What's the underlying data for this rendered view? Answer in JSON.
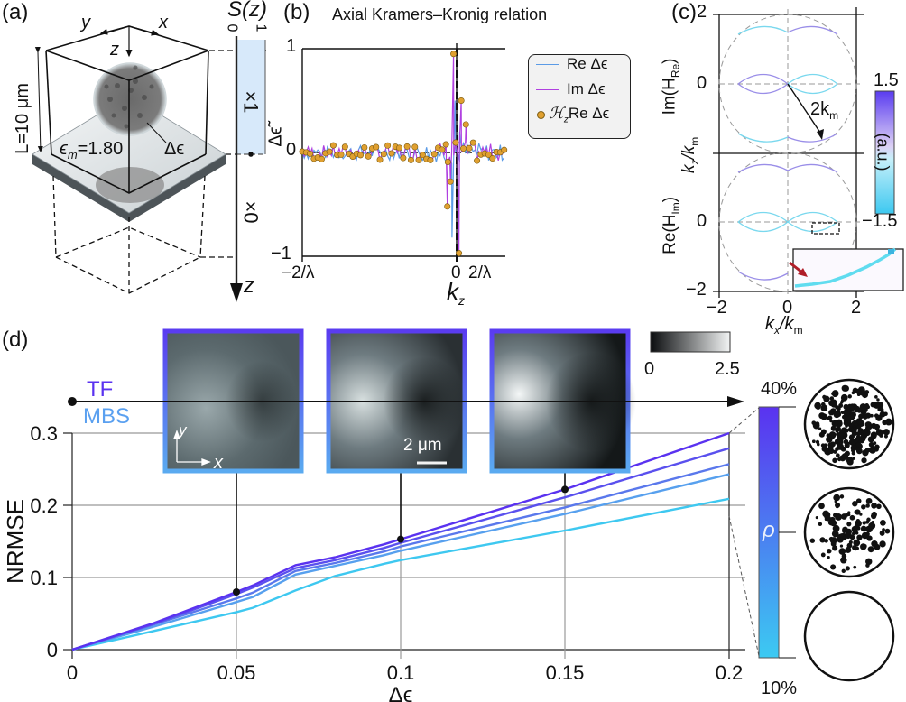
{
  "panels": {
    "a": {
      "label": "(a)",
      "axis_y": "y",
      "axis_x": "x",
      "axis_z": "z",
      "length_label": "L=10 μm",
      "medium_label_base": "ϵ",
      "medium_label_sub": "m",
      "medium_label_value": "=1.80",
      "delta_label": "Δϵ",
      "s_label": "S(z)",
      "s_tick0": "0",
      "s_tick1": "1",
      "factor_inside": "×1",
      "factor_outside": "×0",
      "z_arrow_label": "z"
    },
    "b": {
      "label": "(b)",
      "title": "Axial Kramers–Kronig relation",
      "ylabel": "Δϵ̃",
      "xlabel": "k",
      "xlabel_sub": "z",
      "yticks": [
        "1",
        "0",
        "−1"
      ],
      "xticks": [
        "−2/λ",
        "0",
        "2/λ"
      ],
      "legend": [
        {
          "prefix": "Re ",
          "sym": "Δϵ",
          "color": "#5b9be6",
          "kind": "line"
        },
        {
          "prefix": "Im ",
          "sym": "Δϵ",
          "color": "#b040e0",
          "kind": "line"
        },
        {
          "prefix": "ℋ",
          "sub": "z",
          "mid": "Re ",
          "sym": "Δϵ",
          "color": "#e0a030",
          "kind": "dot"
        }
      ]
    },
    "c": {
      "label": "(c)",
      "top_ylabel": "Im(H",
      "top_ylabel_sub": "Re",
      "bottom_ylabel": "Re(H",
      "bottom_ylabel_sub": "Im",
      "shared_ylabel": "k",
      "shared_ylabel_sub_a": "z",
      "shared_ylabel_b": "/k",
      "shared_ylabel_sub_b": "m",
      "xlabel": "k",
      "xlabel_sub_a": "x",
      "xlabel_b": "/k",
      "xlabel_sub_b": "m",
      "yticks_top": [
        "2",
        "0"
      ],
      "yticks_bottom": [
        "0",
        "−2"
      ],
      "xticks": [
        "−2",
        "0",
        "2"
      ],
      "radius_label": "2k",
      "radius_label_sub": "m",
      "colorbar_max": "1.5",
      "colorbar_min": "−1.5",
      "colorbar_label": "(a.u.)",
      "colorbar_top_color": "#5a3cf0",
      "colorbar_bottom_color": "#3cc8f0"
    },
    "d": {
      "label": "(d)",
      "legend_tf": "TF",
      "legend_mbs": "MBS",
      "legend_tf_color": "#5a32f0",
      "legend_mbs_color": "#5aa0f0",
      "scale_bar": "2 μm",
      "inset_axis_x": "x",
      "inset_axis_y": "y",
      "gray_cbar_min": "0",
      "gray_cbar_max": "2.5",
      "rho_label": "ρ",
      "rho_max": "40%",
      "rho_min": "10%"
    }
  },
  "chart_data": [
    {
      "type": "line",
      "panel": "b",
      "title": "Axial Kramers–Kronig relation",
      "xlabel": "k_z",
      "ylabel": "Δϵ̃",
      "xlim": [
        -1,
        1
      ],
      "x_tick_labels": [
        "−2/λ",
        "0",
        "2/λ"
      ],
      "ylim": [
        -1,
        1
      ],
      "series": [
        {
          "name": "Re Δϵ̃",
          "note": "noisy oscillation around 0, amplitude ~0.1, large swings near k_z=0 (min ~ -0.8 just left of 0)"
        },
        {
          "name": "Im Δϵ̃",
          "note": "noisy oscillation around 0, peak ~0.95 at k_z≈0⁻, min ~ -0.97 at k_z≈0⁺"
        },
        {
          "name": "ℋ_z Re Δϵ̃",
          "note": "dots tracking Im series"
        }
      ],
      "key_points": [
        {
          "x": -0.02,
          "y": 0.95
        },
        {
          "x": -0.06,
          "y": -0.52
        },
        {
          "x": -0.04,
          "y": -0.28
        },
        {
          "x": 0.03,
          "y": 0.5
        },
        {
          "x": 0.015,
          "y": -0.97
        },
        {
          "x": 0.06,
          "y": 0.27
        }
      ]
    },
    {
      "type": "heatmap",
      "panel": "c",
      "xlabel": "k_x/k_m",
      "ylabel": "k_z/k_m",
      "xlim": [
        -2,
        2
      ],
      "ylim": [
        -2,
        2
      ],
      "subplots": [
        "Im(H_Re)",
        "Re(H_Im)"
      ],
      "colorbar_range": [
        -1.5,
        1.5
      ],
      "colorbar_label": "(a.u.)"
    },
    {
      "type": "line",
      "panel": "d",
      "xlabel": "Δϵ",
      "ylabel": "NRMSE",
      "xlim": [
        0,
        0.2
      ],
      "ylim": [
        0,
        0.3
      ],
      "x_ticks": [
        0,
        0.05,
        0.1,
        0.15,
        0.2
      ],
      "y_ticks": [
        0,
        0.1,
        0.2,
        0.3
      ],
      "grid": true,
      "x": [
        0,
        0.025,
        0.05,
        0.055,
        0.068,
        0.08,
        0.095,
        0.1,
        0.15,
        0.2
      ],
      "series": [
        {
          "name": "ρ=40%",
          "color": "#5a32f0",
          "values": [
            0,
            0.037,
            0.08,
            0.089,
            0.117,
            0.128,
            0.146,
            0.153,
            0.222,
            0.3
          ]
        },
        {
          "name": "ρ≈32%",
          "color": "#5a50ee",
          "values": [
            0,
            0.036,
            0.077,
            0.086,
            0.113,
            0.124,
            0.141,
            0.148,
            0.211,
            0.279
          ]
        },
        {
          "name": "ρ≈25%",
          "color": "#5a78ec",
          "values": [
            0,
            0.035,
            0.071,
            0.079,
            0.109,
            0.12,
            0.136,
            0.143,
            0.197,
            0.257
          ]
        },
        {
          "name": "ρ≈18%",
          "color": "#57a0ee",
          "values": [
            0,
            0.032,
            0.066,
            0.073,
            0.104,
            0.116,
            0.131,
            0.137,
            0.188,
            0.243
          ]
        },
        {
          "name": "ρ=10%",
          "color": "#3ec8f0",
          "values": [
            0,
            0.026,
            0.052,
            0.058,
            0.082,
            0.102,
            0.119,
            0.124,
            0.165,
            0.209
          ]
        }
      ],
      "markers": [
        {
          "x": 0.05,
          "y": 0.08
        },
        {
          "x": 0.1,
          "y": 0.153
        },
        {
          "x": 0.15,
          "y": 0.222
        }
      ],
      "legend": [
        "TF",
        "MBS"
      ],
      "colorbar": {
        "label": "ρ",
        "min": "10%",
        "max": "40%"
      }
    }
  ]
}
